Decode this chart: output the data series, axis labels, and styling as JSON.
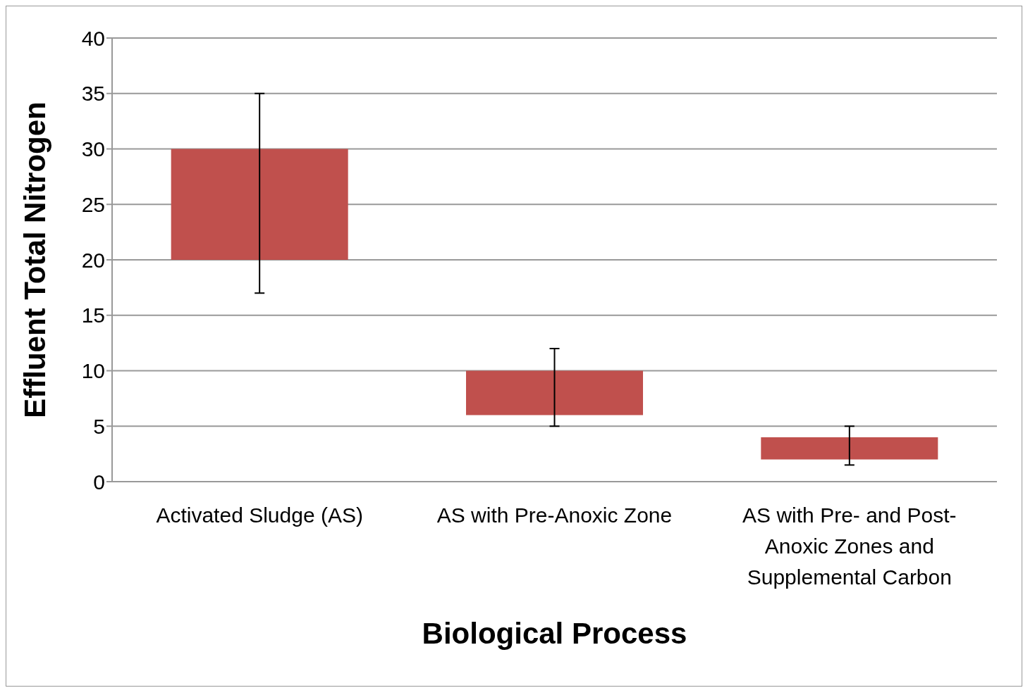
{
  "chart_data": {
    "type": "bar",
    "xlabel": "Biological Process",
    "ylabel": "Effluent Total Nitrogen",
    "categories": [
      "Activated Sludge  (AS)",
      "AS with  Pre-Anoxic Zone",
      "AS with  Pre- and  Post-Anoxic Zones and Supplemental Carbon"
    ],
    "base": [
      20,
      6,
      2
    ],
    "values": [
      10,
      4,
      2
    ],
    "errors": [
      [
        17,
        35
      ],
      [
        5,
        12
      ],
      [
        1.5,
        5
      ]
    ],
    "color": "#c0504d",
    "ylim": [
      0,
      40
    ],
    "yticks": [
      0,
      5,
      10,
      15,
      20,
      25,
      30,
      35,
      40
    ],
    "grid": "y"
  }
}
